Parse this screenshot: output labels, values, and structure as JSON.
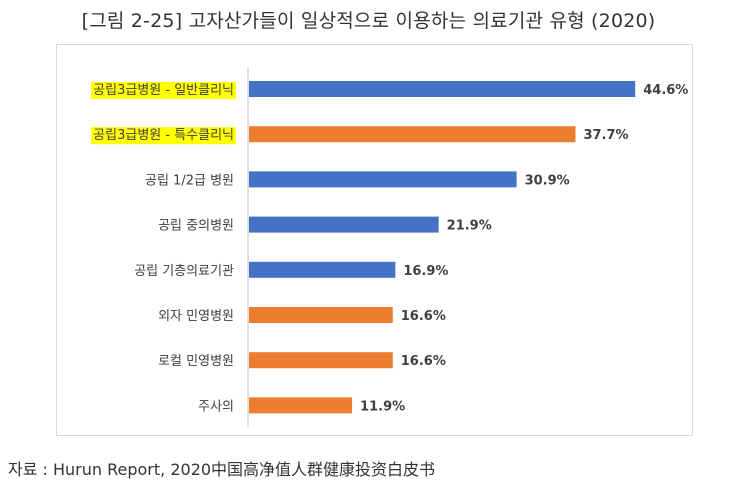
{
  "title": "[그림 2-25] 고자산가들이 일상적으로 이용하는 의료기관 유형 (2020)",
  "source": "자료 : Hurun Report, 2020中国高净值人群健康投资白皮书",
  "colors": {
    "blue": "#4472c4",
    "orange": "#ed7d31",
    "highlight": "#ffff00",
    "axis": "#bfbfbf",
    "label": "#404040"
  },
  "chart_data": {
    "type": "bar",
    "orientation": "horizontal",
    "categories": [
      "공립3급병원 - 일반클리닉",
      "공립3급병원 - 특수클리닉",
      "공립 1/2급 병원",
      "공립 중의병원",
      "공립 기층의료기관",
      "외자 민영병원",
      "로컬 민영병원",
      "주사의"
    ],
    "values": [
      44.6,
      37.7,
      30.9,
      21.9,
      16.9,
      16.6,
      16.6,
      11.9
    ],
    "data_labels": [
      "44.6%",
      "37.7%",
      "30.9%",
      "21.9%",
      "16.9%",
      "16.6%",
      "16.6%",
      "11.9%"
    ],
    "bar_colors": [
      "blue",
      "orange",
      "blue",
      "blue",
      "blue",
      "orange",
      "orange",
      "orange"
    ],
    "highlighted": [
      true,
      true,
      false,
      false,
      false,
      false,
      false,
      false
    ],
    "xlim": [
      0,
      50
    ],
    "grid": false,
    "legend": "none"
  }
}
